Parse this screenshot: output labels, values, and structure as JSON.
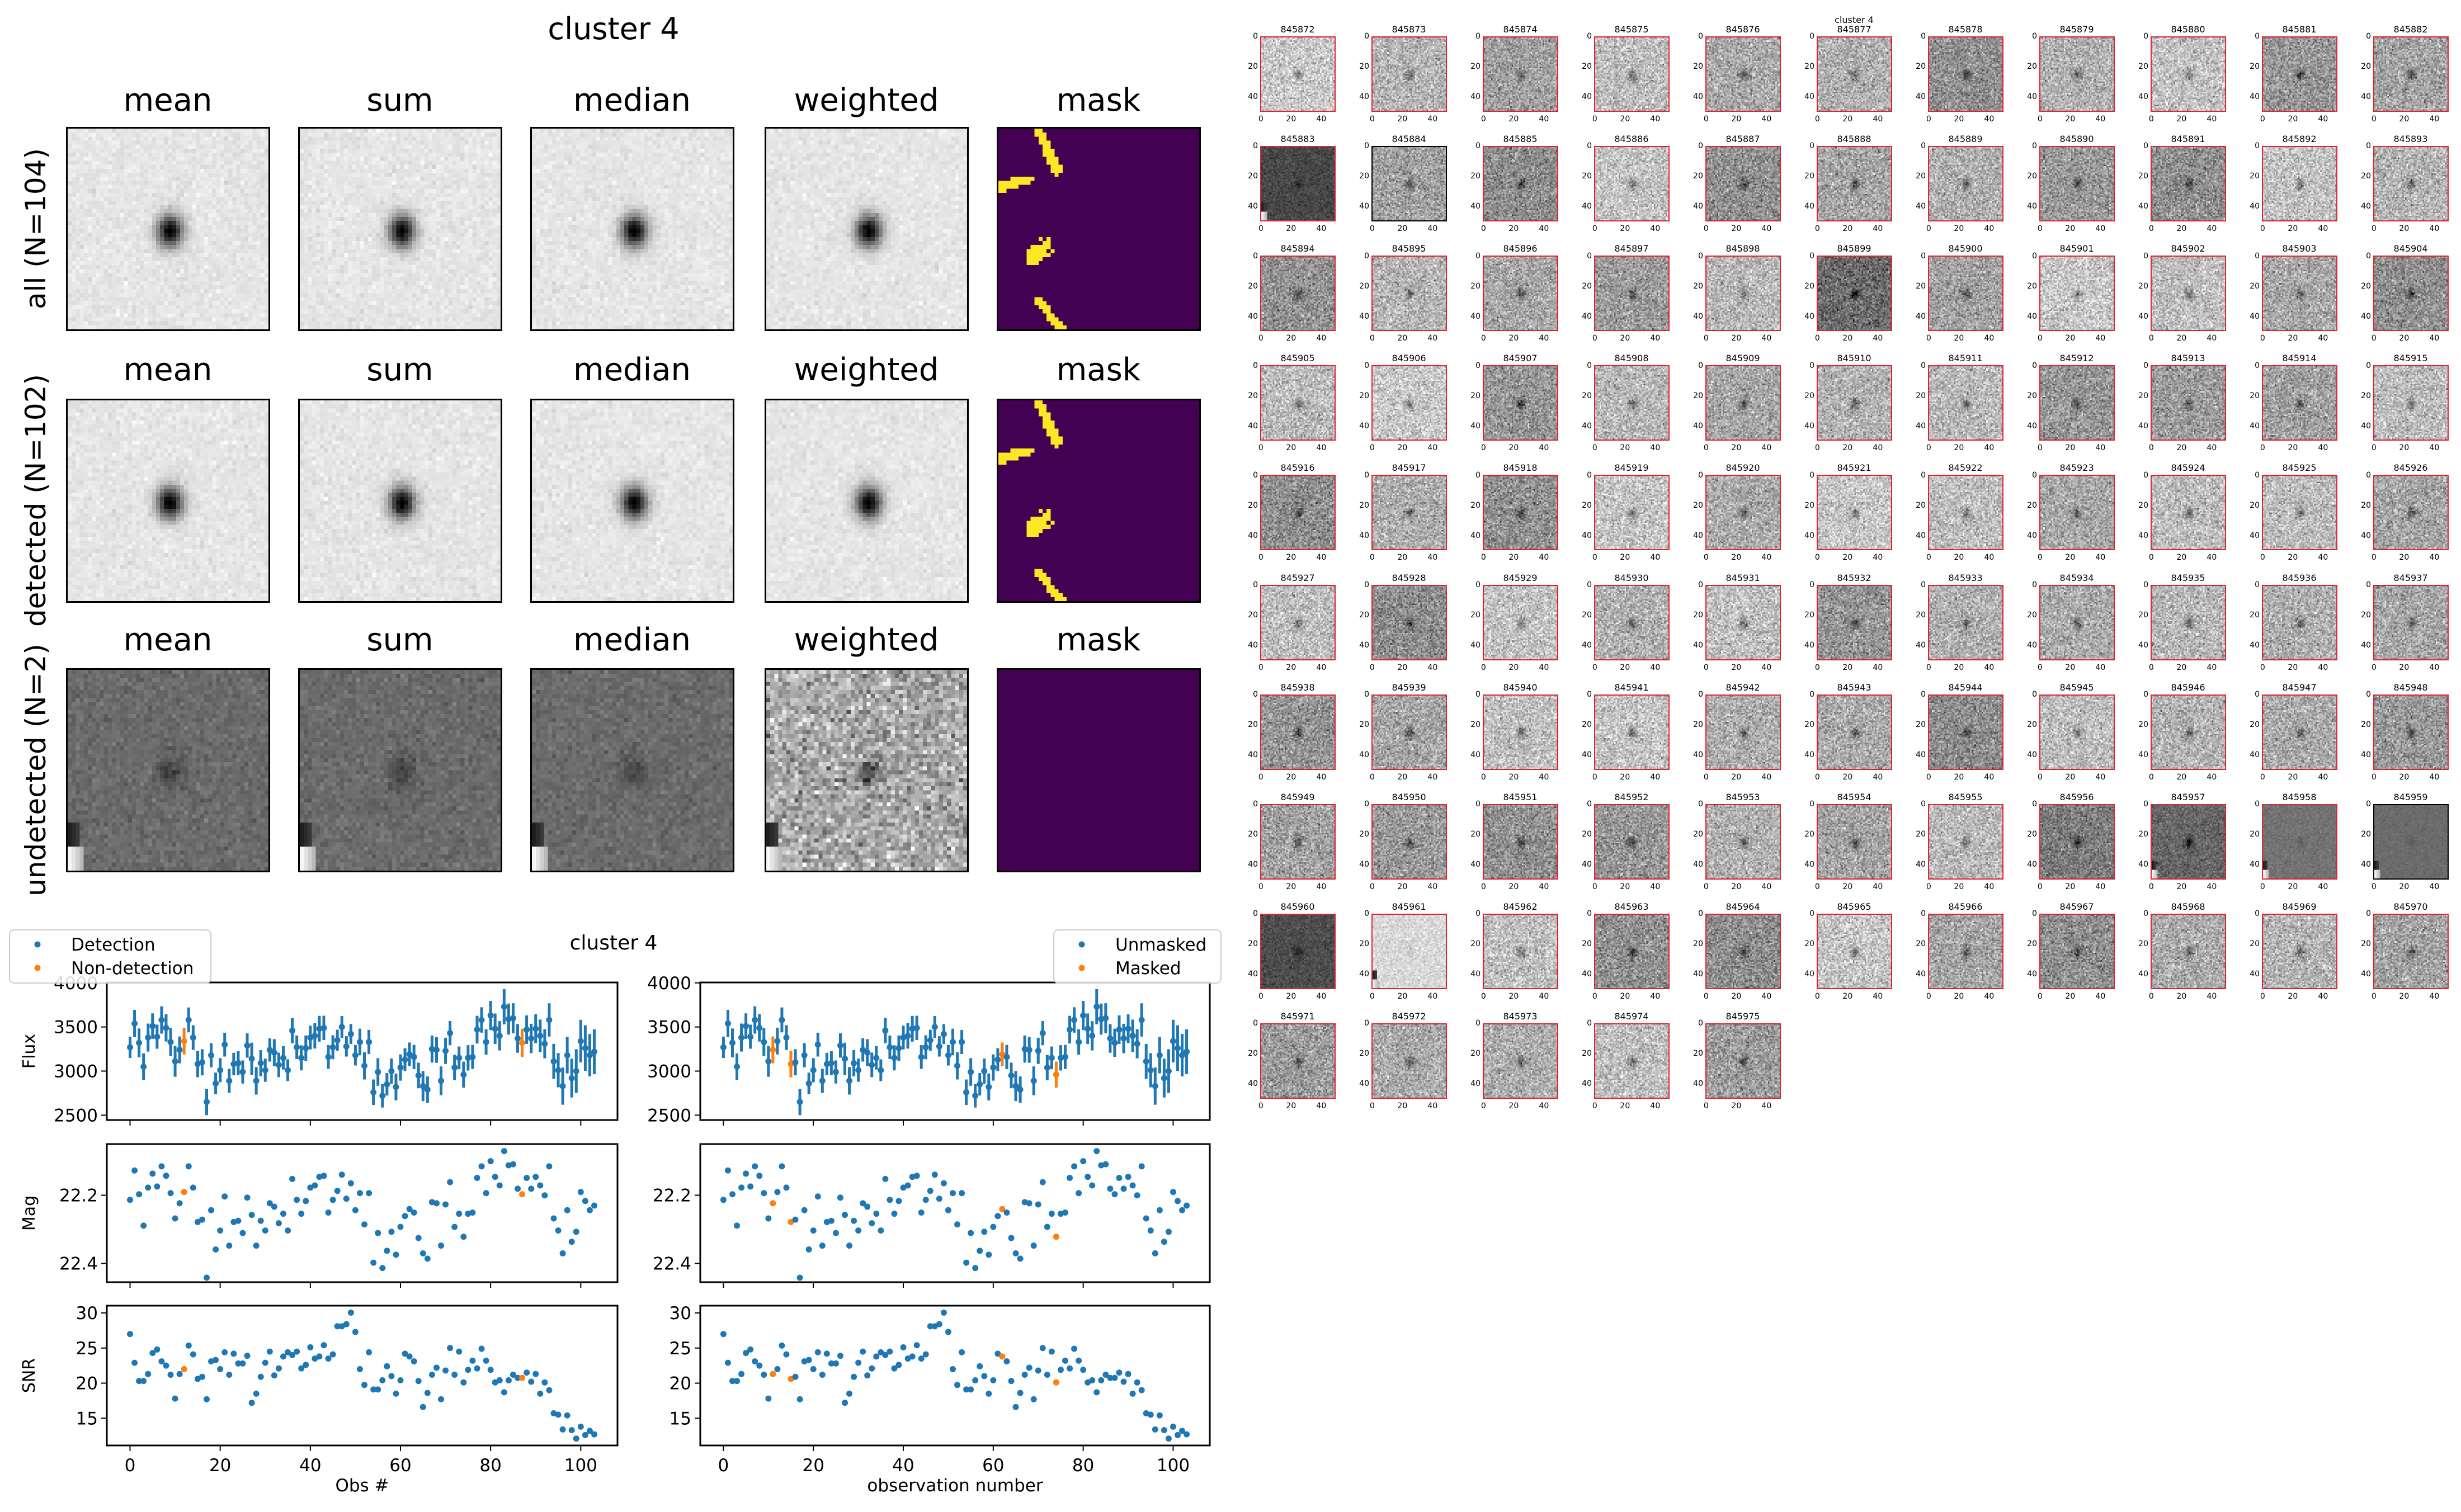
{
  "stamps": {
    "title": "cluster 4",
    "columns": [
      "mean",
      "sum",
      "median",
      "weighted",
      "mask"
    ],
    "rows": [
      "all (N=104)",
      "detected (N=102)",
      "undetected (N=2)"
    ]
  },
  "thumbnails": {
    "suptitle": "cluster 4",
    "ticks": [
      "0",
      "20",
      "40"
    ],
    "ids": [
      "845872",
      "845873",
      "845874",
      "845875",
      "845876",
      "845877",
      "845878",
      "845879",
      "845880",
      "845881",
      "845882",
      "845883",
      "845884",
      "845885",
      "845886",
      "845887",
      "845888",
      "845889",
      "845890",
      "845891",
      "845892",
      "845893",
      "845894",
      "845895",
      "845896",
      "845897",
      "845898",
      "845899",
      "845900",
      "845901",
      "845902",
      "845903",
      "845904",
      "845905",
      "845906",
      "845907",
      "845908",
      "845909",
      "845910",
      "845911",
      "845912",
      "845913",
      "845914",
      "845915",
      "845916",
      "845917",
      "845918",
      "845919",
      "845920",
      "845921",
      "845922",
      "845923",
      "845924",
      "845925",
      "845926",
      "845927",
      "845928",
      "845929",
      "845930",
      "845931",
      "845932",
      "845933",
      "845934",
      "845935",
      "845936",
      "845937",
      "845938",
      "845939",
      "845940",
      "845941",
      "845942",
      "845943",
      "845944",
      "845945",
      "845946",
      "845947",
      "845948",
      "845949",
      "845950",
      "845951",
      "845952",
      "845953",
      "845954",
      "845955",
      "845956",
      "845957",
      "845958",
      "845959",
      "845960",
      "845961",
      "845962",
      "845963",
      "845964",
      "845965",
      "845966",
      "845967",
      "845968",
      "845969",
      "845970",
      "845971",
      "845972",
      "845973",
      "845974",
      "845975"
    ],
    "nondetection_indices": [
      12,
      87
    ],
    "frame_color_detected": "#e0242e",
    "frame_color_nondetected": "#000000"
  },
  "chart_data": {
    "type": "scatter",
    "title": "cluster 4",
    "x": "observation index 0..103",
    "xlim": [
      -5.15,
      108.15
    ],
    "xticks": [
      "0",
      "20",
      "40",
      "60",
      "80",
      "100"
    ],
    "xlabel_left": "Obs #",
    "xlabel_right": "observation number",
    "colors": {
      "primary": "#1f77b4",
      "secondary": "#ff7f0e"
    },
    "legend_left": {
      "placement": "top-left",
      "entries": [
        "Detection",
        "Non-detection"
      ]
    },
    "legend_right": {
      "placement": "top-right",
      "entries": [
        "Unmasked",
        "Masked"
      ]
    },
    "nondetection_indices": [
      12,
      87
    ],
    "masked_indices": [
      11,
      15,
      62,
      74
    ],
    "flux": {
      "ylabel": "Flux",
      "ylim": [
        2445,
        4005
      ],
      "yticks": [
        "2500",
        "3000",
        "3500",
        "4000"
      ],
      "errorbars": "flux / SNR",
      "values": [
        3270,
        3540,
        3320,
        3050,
        3380,
        3510,
        3390,
        3580,
        3490,
        3330,
        3110,
        3240,
        3340,
        3580,
        3380,
        3080,
        3100,
        2650,
        3180,
        2860,
        3010,
        3300,
        2890,
        3080,
        3090,
        2990,
        3290,
        3140,
        2890,
        3090,
        3010,
        3240,
        3210,
        3070,
        3150,
        3010,
        3460,
        3270,
        3150,
        3260,
        3380,
        3400,
        3480,
        3490,
        3160,
        3270,
        3350,
        3500,
        3280,
        3420,
        3180,
        3330,
        3060,
        3330,
        2760,
        2990,
        2720,
        2850,
        3000,
        2820,
        3040,
        3130,
        3190,
        3160,
        2950,
        2830,
        2790,
        3250,
        3240,
        2890,
        3230,
        3430,
        3040,
        3150,
        2960,
        3150,
        3160,
        3470,
        3580,
        3330,
        3630,
        3480,
        3400,
        3730,
        3590,
        3600,
        3370,
        3320,
        3470,
        3370,
        3480,
        3400,
        3310,
        3580,
        3110,
        3010,
        2830,
        3180,
        2920,
        3000,
        3340,
        3260,
        3180,
        3220
      ]
    },
    "mag": {
      "ylabel": "Mag",
      "ylim": [
        22.455,
        22.05
      ],
      "inverted": true,
      "yticks": [
        "22.2",
        "22.4"
      ],
      "zeropoint": 31.0,
      "derived_from": "zeropoint - 2.5*log10(flux)"
    },
    "snr": {
      "ylabel": "SNR",
      "ylim": [
        11.12,
        31.04
      ],
      "yticks": [
        "15",
        "20",
        "25",
        "30"
      ],
      "values": [
        27.0,
        22.9,
        20.3,
        20.3,
        21.3,
        24.3,
        24.8,
        23.1,
        22.5,
        21.2,
        17.8,
        21.3,
        22.0,
        25.35,
        24.1,
        20.6,
        20.9,
        17.7,
        23.1,
        23.3,
        22.0,
        24.4,
        21.2,
        24.2,
        22.8,
        22.8,
        23.9,
        17.2,
        18.5,
        20.9,
        22.9,
        24.5,
        21.1,
        22.1,
        23.8,
        24.4,
        24.0,
        24.5,
        22.1,
        22.6,
        25.1,
        23.5,
        23.8,
        25.4,
        23.5,
        24.1,
        28.1,
        28.1,
        28.4,
        30.05,
        27.3,
        22.0,
        19.75,
        24.4,
        19.1,
        19.1,
        20.4,
        22.4,
        21.0,
        18.5,
        20.4,
        24.2,
        23.8,
        23.1,
        20.3,
        16.6,
        18.6,
        21.2,
        22.2,
        17.7,
        21.8,
        25.0,
        21.2,
        24.5,
        20.1,
        21.9,
        23.2,
        22.1,
        24.9,
        23.2,
        21.9,
        20.1,
        20.4,
        18.7,
        20.4,
        21.2,
        20.75,
        20.75,
        21.5,
        20.2,
        21.3,
        18.5,
        20.1,
        19.0,
        15.7,
        15.5,
        13.4,
        15.4,
        13.3,
        12.1,
        13.8,
        12.6,
        13.2,
        12.7
      ]
    }
  }
}
